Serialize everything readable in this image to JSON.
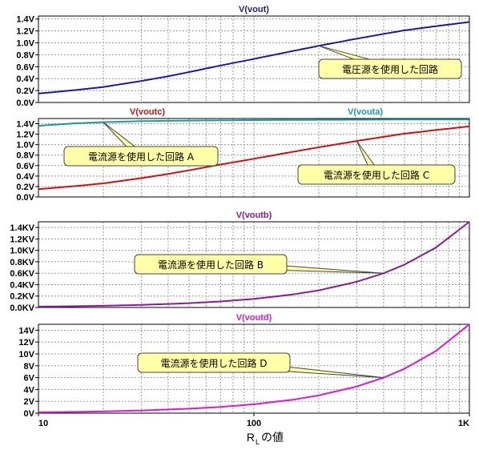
{
  "chart_data": [
    {
      "type": "line",
      "title": "V(vout)",
      "title_color": "#1a1aa6",
      "y_ticks": [
        "0.0V",
        "0.2V",
        "0.4V",
        "0.6V",
        "0.8V",
        "1.0V",
        "1.2V",
        "1.4V"
      ],
      "ylim": [
        0,
        1.45
      ],
      "xlim": [
        10,
        1000
      ],
      "xscale": "log",
      "grid": true,
      "series": [
        {
          "name": "V(vout)",
          "color": "#1a1aa6",
          "x": [
            10,
            15,
            20,
            30,
            40,
            50,
            70,
            100,
            150,
            200,
            300,
            400,
            500,
            700,
            1000
          ],
          "y": [
            0.15,
            0.21,
            0.26,
            0.36,
            0.44,
            0.51,
            0.62,
            0.73,
            0.86,
            0.95,
            1.07,
            1.15,
            1.21,
            1.28,
            1.35
          ]
        }
      ],
      "annotations": [
        {
          "text": "電圧源を使用した回路",
          "point_x": 200,
          "point_y": 0.95
        }
      ]
    },
    {
      "type": "line",
      "title": "",
      "legend_labels": [
        {
          "text": "V(voutc)",
          "color": "#cc1111"
        },
        {
          "text": "V(vouta)",
          "color": "#1a9a9a"
        }
      ],
      "y_ticks": [
        "0.0V",
        "0.2V",
        "0.4V",
        "0.6V",
        "0.8V",
        "1.0V",
        "1.2V",
        "1.4V"
      ],
      "ylim": [
        0,
        1.5
      ],
      "xlim": [
        10,
        1000
      ],
      "xscale": "log",
      "grid": true,
      "series": [
        {
          "name": "V(voutc)",
          "color": "#cc1111",
          "x": [
            10,
            15,
            20,
            30,
            40,
            50,
            70,
            100,
            150,
            200,
            300,
            400,
            500,
            700,
            1000
          ],
          "y": [
            0.15,
            0.21,
            0.26,
            0.36,
            0.44,
            0.51,
            0.62,
            0.73,
            0.86,
            0.95,
            1.07,
            1.15,
            1.21,
            1.28,
            1.35
          ]
        },
        {
          "name": "V(vouta)",
          "color": "#1a9a9a",
          "x": [
            10,
            15,
            20,
            30,
            50,
            100,
            200,
            500,
            1000
          ],
          "y": [
            1.36,
            1.41,
            1.43,
            1.45,
            1.46,
            1.47,
            1.475,
            1.48,
            1.48
          ]
        }
      ],
      "annotations": [
        {
          "text": "電流源を使用した回路 A",
          "point_x": 20,
          "point_y": 1.43
        },
        {
          "text": "電流源を使用した回路 C",
          "point_x": 300,
          "point_y": 1.07
        }
      ]
    },
    {
      "type": "line",
      "title": "V(voutb)",
      "title_color": "#8a1a9a",
      "y_ticks": [
        "0.0KV",
        "0.2KV",
        "0.4KV",
        "0.6KV",
        "0.8KV",
        "1.0KV",
        "1.2KV",
        "1.4KV"
      ],
      "ylim": [
        0,
        1.5
      ],
      "xlim": [
        10,
        1000
      ],
      "xscale": "log",
      "grid": true,
      "series": [
        {
          "name": "V(voutb)",
          "color": "#8a1a9a",
          "x": [
            10,
            15,
            20,
            30,
            50,
            70,
            100,
            150,
            200,
            300,
            400,
            500,
            700,
            1000
          ],
          "y": [
            0.015,
            0.022,
            0.03,
            0.045,
            0.075,
            0.105,
            0.15,
            0.225,
            0.3,
            0.45,
            0.6,
            0.75,
            1.05,
            1.5
          ]
        }
      ],
      "annotations": [
        {
          "text": "電流源を使用した回路 B",
          "point_x": 400,
          "point_y": 0.6
        }
      ]
    },
    {
      "type": "line",
      "title": "V(voutd)",
      "title_color": "#d61ad6",
      "y_ticks": [
        "0V",
        "2V",
        "4V",
        "6V",
        "8V",
        "10V",
        "12V",
        "14V"
      ],
      "ylim": [
        0,
        15
      ],
      "xlim": [
        10,
        1000
      ],
      "xscale": "log",
      "x_ticks": [
        "10",
        "100",
        "1K"
      ],
      "xlabel": "RLの値",
      "grid": true,
      "series": [
        {
          "name": "V(voutd)",
          "color": "#d61ad6",
          "x": [
            10,
            15,
            20,
            30,
            50,
            70,
            100,
            150,
            200,
            300,
            400,
            500,
            700,
            1000
          ],
          "y": [
            0.15,
            0.22,
            0.3,
            0.45,
            0.75,
            1.05,
            1.5,
            2.25,
            3.0,
            4.5,
            6.0,
            7.5,
            10.5,
            15.0
          ]
        }
      ],
      "annotations": [
        {
          "text": "電流源を使用した回路 D",
          "point_x": 400,
          "point_y": 6.0
        }
      ]
    }
  ],
  "xlabel_main": "R",
  "xlabel_sub": "L",
  "xlabel_rest": "の値"
}
